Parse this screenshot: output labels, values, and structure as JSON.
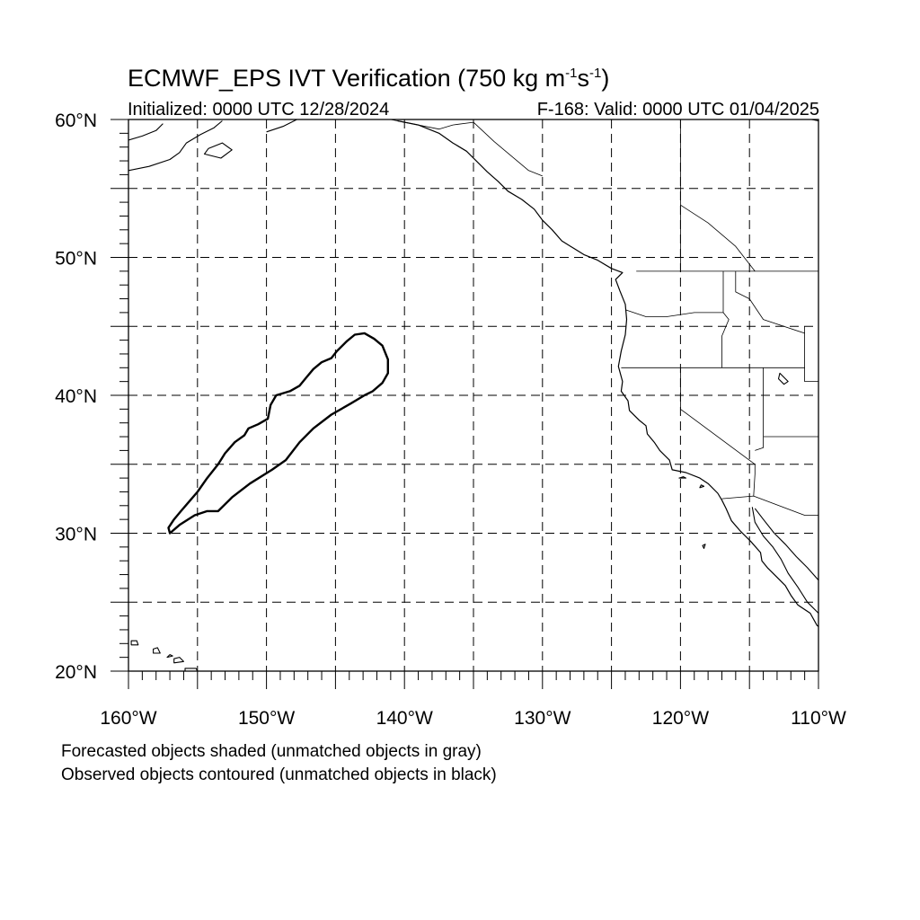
{
  "title": {
    "main": "ECMWF_EPS IVT Verification (750 kg m",
    "sup1": "-1",
    "mid": "s",
    "sup2": "-1",
    "end": ")"
  },
  "subtitle": {
    "initialized": "Initialized: 0000 UTC 12/28/2024",
    "valid": "F-168: Valid: 0000 UTC 01/04/2025"
  },
  "axes": {
    "lon_labels": [
      "160°W",
      "150°W",
      "140°W",
      "130°W",
      "120°W",
      "110°W"
    ],
    "lat_labels": [
      "60°N",
      "50°N",
      "40°N",
      "30°N",
      "20°N"
    ]
  },
  "map": {
    "lon_range": [
      -160,
      -110
    ],
    "lat_range": [
      20,
      60
    ],
    "grid_spacing_deg": 5,
    "gridlines": "dashed",
    "coastline_color": "#000000",
    "observed_object": {
      "style": "black contour (unmatched)",
      "points": [
        [
          -157,
          30.0
        ],
        [
          -156.3,
          30.6
        ],
        [
          -155.2,
          31.3
        ],
        [
          -154.3,
          31.6
        ],
        [
          -153.5,
          31.6
        ],
        [
          -152.5,
          32.6
        ],
        [
          -151.2,
          33.6
        ],
        [
          -149.6,
          34.6
        ],
        [
          -148.6,
          35.3
        ],
        [
          -147.6,
          36.6
        ],
        [
          -146.6,
          37.6
        ],
        [
          -145.3,
          38.6
        ],
        [
          -143.9,
          39.4
        ],
        [
          -142.9,
          40.0
        ],
        [
          -142.3,
          40.3
        ],
        [
          -141.6,
          40.9
        ],
        [
          -141.2,
          41.6
        ],
        [
          -141.2,
          42.6
        ],
        [
          -141.6,
          43.6
        ],
        [
          -142.2,
          44.1
        ],
        [
          -142.9,
          44.5
        ],
        [
          -143.6,
          44.4
        ],
        [
          -144.2,
          43.9
        ],
        [
          -144.9,
          43.2
        ],
        [
          -145.3,
          42.7
        ],
        [
          -146.0,
          42.4
        ],
        [
          -146.6,
          41.9
        ],
        [
          -147.1,
          41.3
        ],
        [
          -147.6,
          40.7
        ],
        [
          -148.3,
          40.3
        ],
        [
          -149.3,
          40.0
        ],
        [
          -149.7,
          39.3
        ],
        [
          -149.9,
          38.3
        ],
        [
          -150.6,
          37.9
        ],
        [
          -151.3,
          37.6
        ],
        [
          -151.6,
          37.1
        ],
        [
          -152.3,
          36.6
        ],
        [
          -153.0,
          35.8
        ],
        [
          -153.5,
          35.0
        ],
        [
          -154.3,
          34.0
        ],
        [
          -155.0,
          33.0
        ],
        [
          -155.6,
          32.3
        ],
        [
          -156.2,
          31.6
        ],
        [
          -156.7,
          31.0
        ],
        [
          -157.1,
          30.4
        ],
        [
          -157,
          30.0
        ]
      ]
    }
  },
  "legend": {
    "forecast_note": "Forecasted objects shaded (unmatched objects in gray)",
    "observed_note": "Observed objects contoured (unmatched objects in black)"
  }
}
